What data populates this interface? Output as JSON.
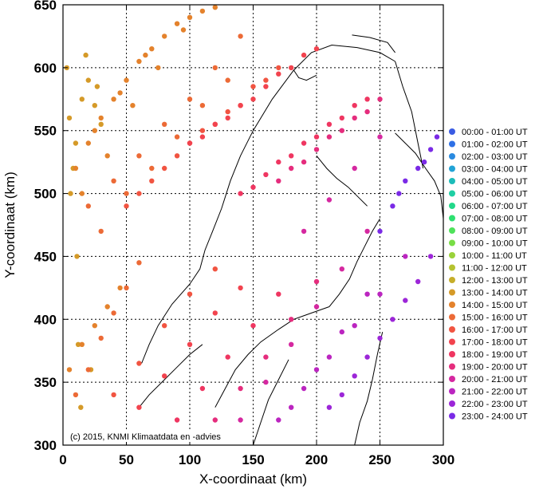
{
  "chart_data": {
    "type": "scatter",
    "title": "",
    "xlabel": "X-coordinaat (km)",
    "ylabel": "Y-coordinaat (km)",
    "xlim": [
      0,
      300
    ],
    "ylim": [
      300,
      650
    ],
    "xticks": [
      0,
      50,
      100,
      150,
      200,
      250,
      300
    ],
    "yticks": [
      300,
      350,
      400,
      450,
      500,
      550,
      600,
      650
    ],
    "grid": true,
    "legend_position": "right",
    "copyright": "(c) 2015, KNMI Klimaatdata en -advies",
    "series": [
      {
        "name": "00:00 - 01:00 UT",
        "color": "#3a5be3",
        "x": [],
        "y": []
      },
      {
        "name": "01:00 - 02:00 UT",
        "color": "#2e70e6",
        "x": [],
        "y": []
      },
      {
        "name": "02:00 - 03:00 UT",
        "color": "#2a8ae0",
        "x": [],
        "y": []
      },
      {
        "name": "03:00 - 04:00 UT",
        "color": "#21a3d6",
        "x": [],
        "y": []
      },
      {
        "name": "04:00 - 05:00 UT",
        "color": "#1cbcb9",
        "x": [],
        "y": []
      },
      {
        "name": "05:00 - 06:00 UT",
        "color": "#1fcfa4",
        "x": [],
        "y": []
      },
      {
        "name": "06:00 - 07:00 UT",
        "color": "#22d88a",
        "x": [],
        "y": []
      },
      {
        "name": "07:00 - 08:00 UT",
        "color": "#2ee070",
        "x": [],
        "y": []
      },
      {
        "name": "08:00 - 09:00 UT",
        "color": "#4ee25a",
        "x": [],
        "y": []
      },
      {
        "name": "09:00 - 10:00 UT",
        "color": "#78dd45",
        "x": [],
        "y": []
      },
      {
        "name": "10:00 - 11:00 UT",
        "color": "#9ad23a",
        "x": [],
        "y": []
      },
      {
        "name": "11:00 - 12:00 UT",
        "color": "#b5c230",
        "x": [],
        "y": []
      },
      {
        "name": "12:00 - 13:00 UT",
        "color": "#c6ae2a",
        "x": [],
        "y": []
      },
      {
        "name": "13:00 - 14:00 UT",
        "color": "#d59a28",
        "x": [
          5,
          10,
          15,
          20,
          25,
          8,
          12,
          18,
          3,
          30,
          22,
          14,
          6,
          27,
          11
        ],
        "y": [
          560,
          540,
          575,
          590,
          570,
          520,
          380,
          610,
          600,
          555,
          360,
          330,
          500,
          585,
          450
        ]
      },
      {
        "name": "14:00 - 15:00 UT",
        "color": "#e4822c",
        "x": [
          10,
          20,
          30,
          40,
          50,
          60,
          70,
          80,
          90,
          100,
          110,
          120,
          15,
          35,
          55,
          75,
          95,
          25,
          45,
          65,
          5,
          15,
          25,
          35,
          45
        ],
        "y": [
          520,
          540,
          560,
          575,
          590,
          605,
          615,
          625,
          635,
          640,
          645,
          648,
          500,
          530,
          570,
          600,
          630,
          550,
          580,
          610,
          360,
          380,
          395,
          410,
          425
        ]
      },
      {
        "name": "15:00 - 16:00 UT",
        "color": "#ec6a36",
        "x": [
          20,
          40,
          60,
          80,
          100,
          120,
          140,
          30,
          50,
          70,
          90,
          110,
          130,
          10,
          20,
          30,
          40,
          50,
          60
        ],
        "y": [
          490,
          510,
          530,
          555,
          575,
          600,
          625,
          470,
          500,
          520,
          545,
          570,
          590,
          340,
          360,
          385,
          405,
          425,
          445
        ]
      },
      {
        "name": "16:00 - 17:00 UT",
        "color": "#f15441",
        "x": [
          50,
          70,
          90,
          110,
          130,
          150,
          170,
          60,
          80,
          100,
          120,
          140,
          160,
          40,
          60,
          80,
          100,
          120
        ],
        "y": [
          490,
          510,
          530,
          550,
          565,
          585,
          600,
          500,
          520,
          540,
          555,
          570,
          590,
          340,
          365,
          395,
          420,
          440
        ]
      },
      {
        "name": "17:00 - 18:00 UT",
        "color": "#f2434e",
        "x": [
          100,
          120,
          140,
          160,
          180,
          200,
          110,
          130,
          150,
          170,
          190,
          60,
          80,
          100,
          120,
          140
        ],
        "y": [
          540,
          555,
          570,
          585,
          600,
          615,
          545,
          560,
          575,
          595,
          610,
          330,
          355,
          380,
          405,
          425
        ]
      },
      {
        "name": "18:00 - 19:00 UT",
        "color": "#ef3661",
        "x": [
          140,
          160,
          180,
          200,
          220,
          240,
          150,
          170,
          190,
          210,
          230,
          90,
          110,
          130,
          150,
          170
        ],
        "y": [
          500,
          515,
          530,
          545,
          560,
          575,
          505,
          525,
          540,
          555,
          570,
          320,
          345,
          370,
          395,
          420
        ]
      },
      {
        "name": "19:00 - 20:00 UT",
        "color": "#e52d7d",
        "x": [
          170,
          190,
          210,
          230,
          250,
          180,
          200,
          220,
          240,
          120,
          140,
          160,
          180,
          200
        ],
        "y": [
          510,
          525,
          545,
          560,
          575,
          520,
          535,
          550,
          565,
          320,
          345,
          370,
          400,
          430
        ]
      },
      {
        "name": "20:00 - 21:00 UT",
        "color": "#d528a0",
        "x": [
          190,
          210,
          230,
          250,
          140,
          160,
          180,
          200,
          220,
          240
        ],
        "y": [
          470,
          495,
          520,
          545,
          320,
          350,
          380,
          410,
          440,
          470
        ]
      },
      {
        "name": "21:00 - 22:00 UT",
        "color": "#bb25c0",
        "x": [
          170,
          190,
          210,
          230,
          250,
          270,
          180,
          200,
          220,
          240
        ],
        "y": [
          320,
          345,
          370,
          395,
          420,
          450,
          330,
          360,
          390,
          420
        ]
      },
      {
        "name": "22:00 - 23:00 UT",
        "color": "#9c26d8",
        "x": [
          210,
          230,
          250,
          270,
          290,
          220,
          240,
          260,
          280
        ],
        "y": [
          330,
          355,
          385,
          415,
          450,
          340,
          370,
          400,
          430
        ]
      },
      {
        "name": "23:00 - 24:00 UT",
        "color": "#7a2ae6",
        "x": [
          250,
          260,
          270,
          280,
          290,
          295,
          265,
          285
        ],
        "y": [
          470,
          490,
          510,
          520,
          535,
          545,
          500,
          525
        ]
      }
    ]
  }
}
